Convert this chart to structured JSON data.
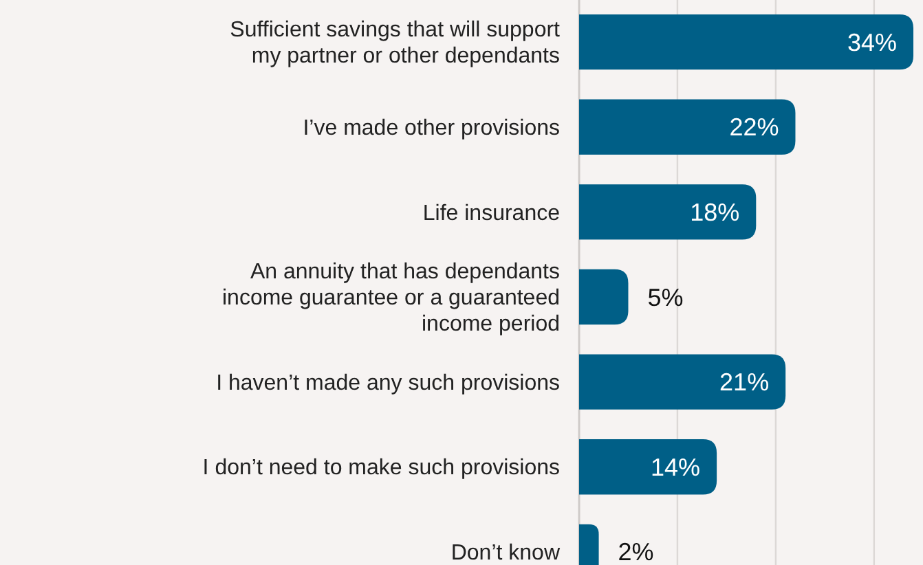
{
  "chart_data": {
    "type": "bar",
    "orientation": "horizontal",
    "categories": [
      "Sufficient savings that will support my partner or other dependants",
      "I’ve made other provisions",
      "Life insurance",
      "An annuity that has dependants income guarantee or a guaranteed income period",
      "I haven’t made any such provisions",
      "I don’t need to make such provisions",
      "Don’t know"
    ],
    "values": [
      34,
      22,
      18,
      5,
      21,
      14,
      2
    ],
    "value_labels": [
      "34%",
      "22%",
      "18%",
      "5%",
      "21%",
      "14%",
      "2%"
    ],
    "color": "#005f87",
    "xlim": [
      0,
      34
    ],
    "xticks": [
      {
        "value": 10,
        "label": null
      },
      {
        "value": 20,
        "label": null
      },
      {
        "value": 30,
        "label": null
      }
    ],
    "grid": "x"
  }
}
